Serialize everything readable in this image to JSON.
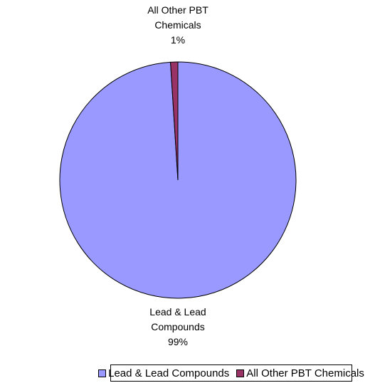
{
  "chart_data": {
    "type": "pie",
    "categories": [
      "Lead & Lead Compounds",
      "All Other PBT Chemicals"
    ],
    "values": [
      99,
      1
    ],
    "value_labels": [
      "99%",
      "1%"
    ],
    "colors": [
      "#9999ff",
      "#993366"
    ]
  }
}
